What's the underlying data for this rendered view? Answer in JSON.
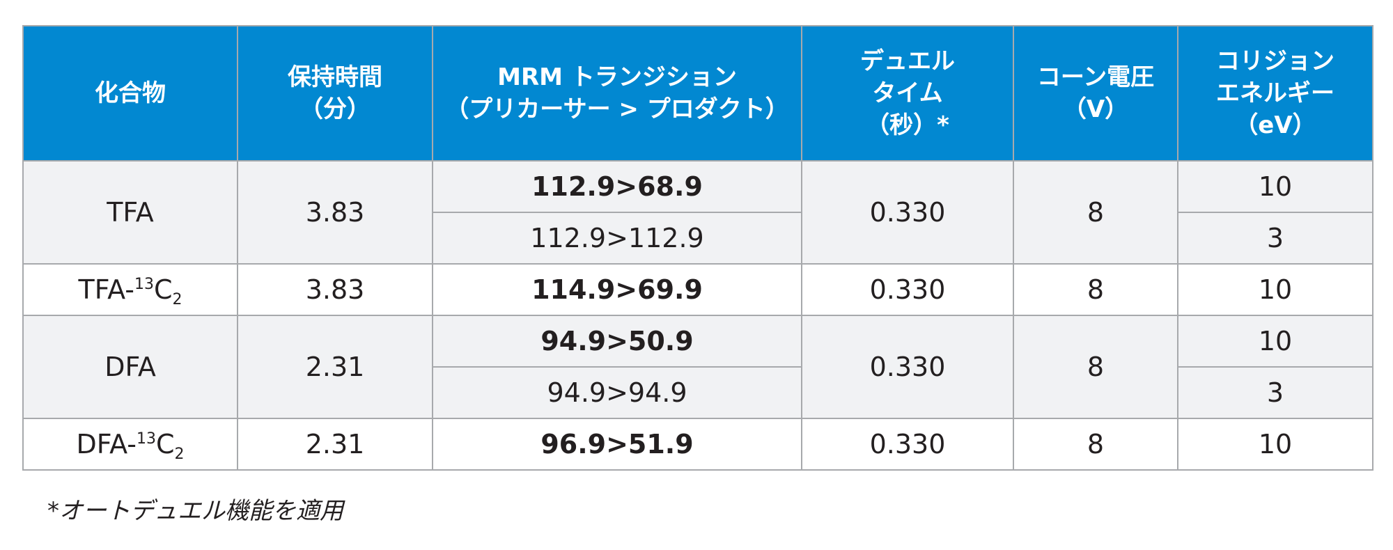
{
  "headers": {
    "compound": [
      "化合物"
    ],
    "retention_time": [
      "保持時間",
      "（分）"
    ],
    "mrm_transition": [
      "MRM トランジション",
      "（プリカーサー > プロダクト）"
    ],
    "dwell_time": [
      "デュエル",
      "タイム",
      "（秒）*"
    ],
    "cone_voltage": [
      "コーン電圧",
      "（V）"
    ],
    "collision_energy": [
      "コリジョン",
      "エネルギー",
      "（eV）"
    ]
  },
  "rows": [
    {
      "compound": {
        "base": "TFA",
        "iso_mass": "",
        "element": "",
        "count": ""
      },
      "retention_time": "3.83",
      "transitions": [
        "112.9>68.9",
        "112.9>112.9"
      ],
      "dwell_time": "0.330",
      "cone_voltage": "8",
      "collision_energies": [
        "10",
        "3"
      ]
    },
    {
      "compound": {
        "base": "TFA-",
        "iso_mass": "13",
        "element": "C",
        "count": "2"
      },
      "retention_time": "3.83",
      "transitions": [
        "114.9>69.9"
      ],
      "dwell_time": "0.330",
      "cone_voltage": "8",
      "collision_energies": [
        "10"
      ]
    },
    {
      "compound": {
        "base": "DFA",
        "iso_mass": "",
        "element": "",
        "count": ""
      },
      "retention_time": "2.31",
      "transitions": [
        "94.9>50.9",
        "94.9>94.9"
      ],
      "dwell_time": "0.330",
      "cone_voltage": "8",
      "collision_energies": [
        "10",
        "3"
      ]
    },
    {
      "compound": {
        "base": "DFA-",
        "iso_mass": "13",
        "element": "C",
        "count": "2"
      },
      "retention_time": "2.31",
      "transitions": [
        "96.9>51.9"
      ],
      "dwell_time": "0.330",
      "cone_voltage": "8",
      "collision_energies": [
        "10"
      ]
    }
  ],
  "footnote": "*オートデュエル機能を適用",
  "colors": {
    "header_bg": "#0288d1",
    "header_text": "#ffffff",
    "shaded_row_bg": "#f1f2f4",
    "border": "#a7a9ac",
    "body_text": "#231f20"
  }
}
